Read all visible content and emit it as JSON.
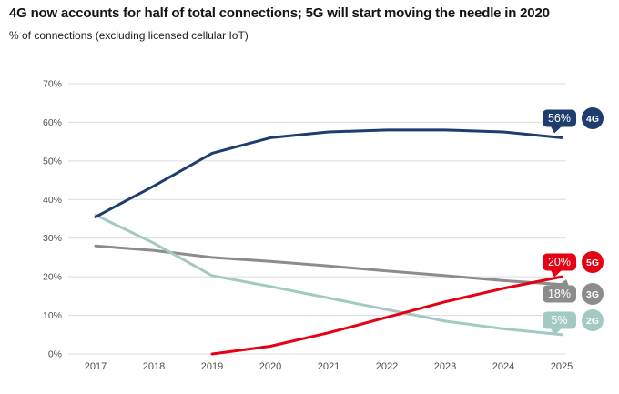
{
  "header": {
    "title": "4G now accounts for half of total connections; 5G will start moving the needle in 2020",
    "subtitle": "% of connections (excluding licensed cellular IoT)"
  },
  "chart_data": {
    "type": "line",
    "title": "4G now accounts for half of total connections; 5G will start moving the needle in 2020",
    "subtitle": "% of connections (excluding licensed cellular IoT)",
    "categories": [
      "2017",
      "2018",
      "2019",
      "2020",
      "2021",
      "2022",
      "2023",
      "2024",
      "2025"
    ],
    "series": [
      {
        "name": "4G",
        "color": "#1f3c6e",
        "values": [
          35.5,
          43.5,
          52,
          56,
          57.5,
          58,
          58,
          57.5,
          56
        ],
        "end_label": "56%"
      },
      {
        "name": "5G",
        "color": "#e60014",
        "values": [
          null,
          null,
          0,
          2,
          5.5,
          9.5,
          13.5,
          17,
          20
        ],
        "end_label": "20%"
      },
      {
        "name": "3G",
        "color": "#8c8c8c",
        "values": [
          28,
          26.8,
          25,
          24,
          22.8,
          21.5,
          20.3,
          19,
          18
        ],
        "end_label": "18%"
      },
      {
        "name": "2G",
        "color": "#a2c9c2",
        "values": [
          36,
          28.7,
          20.3,
          17.5,
          14.5,
          11.5,
          8.5,
          6.5,
          5
        ],
        "end_label": "5%"
      }
    ],
    "xlabel": "",
    "ylabel": "",
    "ylim": [
      0,
      70
    ],
    "ytick_labels": [
      "0%",
      "10%",
      "20%",
      "30%",
      "40%",
      "50%",
      "60%",
      "70%"
    ],
    "grid": "horizontal",
    "legend_position": "right-end-labels"
  }
}
